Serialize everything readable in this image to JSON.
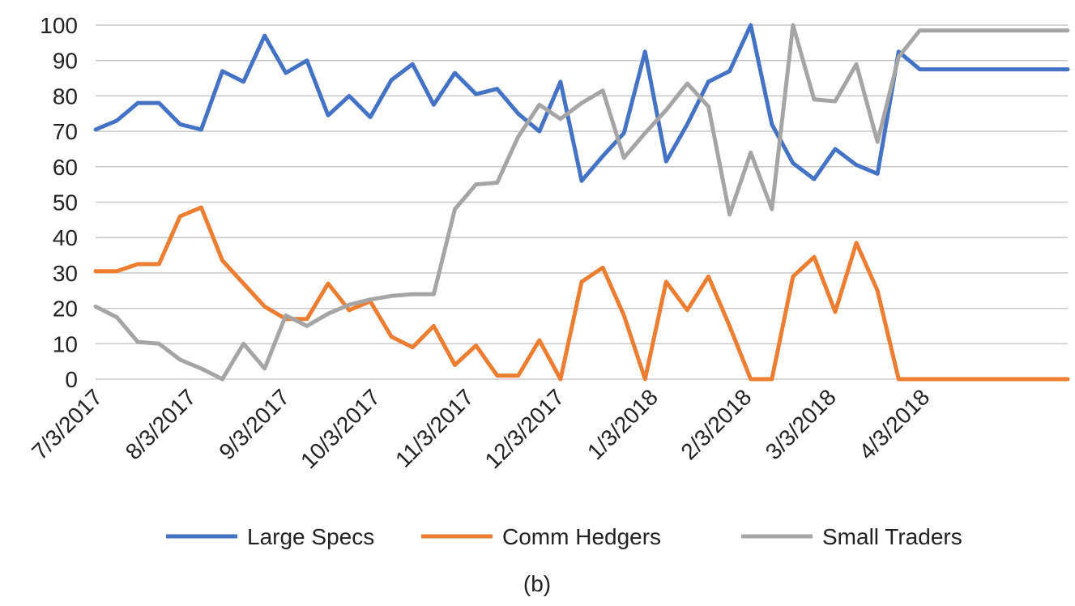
{
  "chart_data": {
    "type": "line",
    "title": "",
    "xlabel": "",
    "ylabel": "",
    "ylim": [
      0,
      100
    ],
    "yticks": [
      0,
      10,
      20,
      30,
      40,
      50,
      60,
      70,
      80,
      90,
      100
    ],
    "grid": "horizontal",
    "legend_position": "bottom",
    "caption": "(b)",
    "x_tick_labels": [
      "7/3/2017",
      "8/3/2017",
      "9/3/2017",
      "10/3/2017",
      "11/3/2017",
      "12/3/2017",
      "1/3/2018",
      "2/3/2018",
      "3/3/2018",
      "4/3/2018"
    ],
    "x": [
      "2017-07-03",
      "2017-07-10",
      "2017-07-17",
      "2017-07-24",
      "2017-07-31",
      "2017-08-07",
      "2017-08-14",
      "2017-08-21",
      "2017-08-28",
      "2017-09-04",
      "2017-09-11",
      "2017-09-18",
      "2017-09-25",
      "2017-10-02",
      "2017-10-09",
      "2017-10-16",
      "2017-10-23",
      "2017-10-30",
      "2017-11-06",
      "2017-11-13",
      "2017-11-20",
      "2017-11-27",
      "2017-12-04",
      "2017-12-11",
      "2017-12-18",
      "2017-12-25",
      "2018-01-01",
      "2018-01-08",
      "2018-01-15",
      "2018-01-22",
      "2018-01-29",
      "2018-02-05",
      "2018-02-12",
      "2018-02-19",
      "2018-02-26",
      "2018-03-05",
      "2018-03-12",
      "2018-03-19",
      "2018-03-26",
      "2018-04-02",
      "2018-04-09",
      "2018-04-16",
      "2018-04-23",
      "2018-04-30",
      "2018-05-07",
      "2018-05-14",
      "2018-05-21"
    ],
    "series": [
      {
        "name": "Large Specs",
        "color": "#4472C4",
        "values": [
          70.5,
          73,
          78,
          78,
          72,
          70.5,
          87,
          84,
          97,
          86.5,
          90,
          74.5,
          80,
          74,
          84.5,
          89,
          77.5,
          86.5,
          80.5,
          82,
          75,
          70,
          84,
          56,
          63,
          69.5,
          92.5,
          61.5,
          72,
          84,
          87,
          100,
          72,
          61,
          56.5,
          65,
          60.5,
          58,
          92.5,
          87.5,
          87.5,
          87.5,
          87.5,
          87.5,
          87.5,
          87.5,
          87.5
        ]
      },
      {
        "name": "Comm Hedgers",
        "color": "#ED7D31",
        "values": [
          30.5,
          30.5,
          32.5,
          32.5,
          46,
          48.5,
          33.5,
          27,
          20.5,
          17,
          17,
          27,
          19.5,
          22,
          12,
          9,
          15,
          4,
          9.5,
          1,
          1,
          11,
          0,
          27.5,
          31.5,
          18,
          0,
          27.5,
          19.5,
          29,
          15,
          0,
          0,
          29,
          34.5,
          19,
          38.5,
          25,
          0,
          0,
          0,
          0,
          0,
          0,
          0,
          0,
          0
        ]
      },
      {
        "name": "Small Traders",
        "color": "#A5A5A5",
        "values": [
          20.5,
          17.5,
          10.5,
          10,
          5.5,
          3,
          0,
          10,
          3,
          18,
          15,
          18.5,
          21,
          22.5,
          23.5,
          24,
          24,
          48,
          55,
          55.5,
          68.5,
          77.5,
          73.5,
          78,
          81.5,
          62.5,
          69.5,
          76,
          83.5,
          77,
          46.5,
          64,
          48,
          100,
          79,
          78.5,
          89,
          67,
          91,
          98.5,
          98.5,
          98.5,
          98.5,
          98.5,
          98.5,
          98.5,
          98.5
        ]
      }
    ]
  }
}
